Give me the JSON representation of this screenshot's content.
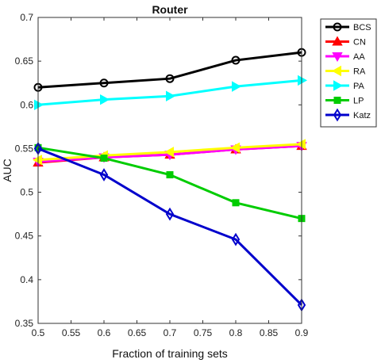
{
  "chart_data": {
    "type": "line",
    "title": "Router",
    "xlabel": "Fraction of training sets",
    "ylabel": "AUC",
    "xlim": [
      0.5,
      0.9
    ],
    "ylim": [
      0.35,
      0.7
    ],
    "xticks": [
      "0.5",
      "0.55",
      "0.6",
      "0.65",
      "0.7",
      "0.75",
      "0.8",
      "0.85",
      "0.9"
    ],
    "yticks": [
      "0.35",
      "0.4",
      "0.45",
      "0.5",
      "0.55",
      "0.6",
      "0.65",
      "0.7"
    ],
    "grid": false,
    "legend_position": "top-right",
    "x": [
      0.5,
      0.6,
      0.7,
      0.8,
      0.9
    ],
    "series": [
      {
        "name": "BCS",
        "color": "#000000",
        "marker": "circle",
        "values": [
          0.62,
          0.625,
          0.63,
          0.651,
          0.66
        ]
      },
      {
        "name": "CN",
        "color": "#ff0000",
        "marker": "triangle-up",
        "values": [
          0.534,
          0.54,
          0.543,
          0.549,
          0.553
        ]
      },
      {
        "name": "AA",
        "color": "#ff00ff",
        "marker": "triangle-down",
        "values": [
          0.535,
          0.54,
          0.543,
          0.549,
          0.553
        ]
      },
      {
        "name": "RA",
        "color": "#ffff00",
        "marker": "triangle-left",
        "values": [
          0.537,
          0.542,
          0.546,
          0.551,
          0.555
        ]
      },
      {
        "name": "PA",
        "color": "#00ffff",
        "marker": "triangle-right",
        "values": [
          0.6,
          0.606,
          0.61,
          0.621,
          0.628
        ]
      },
      {
        "name": "LP",
        "color": "#00cc00",
        "marker": "square",
        "values": [
          0.551,
          0.539,
          0.52,
          0.488,
          0.47
        ]
      },
      {
        "name": "Katz",
        "color": "#0000cc",
        "marker": "diamond",
        "values": [
          0.55,
          0.52,
          0.475,
          0.446,
          0.371
        ]
      }
    ]
  }
}
